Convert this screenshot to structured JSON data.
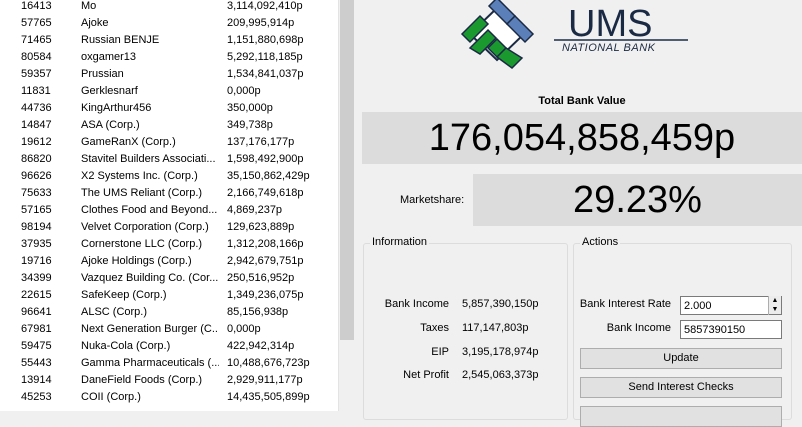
{
  "accounts": [
    {
      "id": "16413",
      "name": "Mo",
      "balance": "3,114,092,410p"
    },
    {
      "id": "57765",
      "name": "Ajoke",
      "balance": "209,995,914p"
    },
    {
      "id": "71465",
      "name": "Russian BENJE",
      "balance": "1,151,880,698p"
    },
    {
      "id": "80584",
      "name": "oxgamer13",
      "balance": "5,292,118,185p"
    },
    {
      "id": "59357",
      "name": "Prussian",
      "balance": "1,534,841,037p"
    },
    {
      "id": "11831",
      "name": "Gerklesnarf",
      "balance": "0,000p"
    },
    {
      "id": "44736",
      "name": "KingArthur456",
      "balance": "350,000p"
    },
    {
      "id": "14847",
      "name": "ASA (Corp.)",
      "balance": "349,738p"
    },
    {
      "id": "19612",
      "name": "GameRanX (Corp.)",
      "balance": "137,176,177p"
    },
    {
      "id": "86820",
      "name": "Stavitel Builders Associati...",
      "balance": "1,598,492,900p"
    },
    {
      "id": "96626",
      "name": "X2 Systems Inc. (Corp.)",
      "balance": "35,150,862,429p"
    },
    {
      "id": "75633",
      "name": "The UMS Reliant (Corp.)",
      "balance": "2,166,749,618p"
    },
    {
      "id": "57165",
      "name": "Clothes Food and Beyond...",
      "balance": "4,869,237p"
    },
    {
      "id": "98194",
      "name": "Velvet Corporation (Corp.)",
      "balance": "129,623,889p"
    },
    {
      "id": "37935",
      "name": "Cornerstone LLC (Corp.)",
      "balance": "1,312,208,166p"
    },
    {
      "id": "19716",
      "name": "Ajoke Holdings (Corp.)",
      "balance": "2,942,679,751p"
    },
    {
      "id": "34399",
      "name": "Vazquez Building Co. (Cor...",
      "balance": "250,516,952p"
    },
    {
      "id": "22615",
      "name": "SafeKeep (Corp.)",
      "balance": "1,349,236,075p"
    },
    {
      "id": "96641",
      "name": "ALSC (Corp.)",
      "balance": "85,156,938p"
    },
    {
      "id": "67981",
      "name": "Next Generation Burger (C...",
      "balance": "0,000p"
    },
    {
      "id": "59475",
      "name": "Nuka-Cola (Corp.)",
      "balance": "422,942,314p"
    },
    {
      "id": "55443",
      "name": "Gamma Pharmaceuticals (...",
      "balance": "10,488,676,723p"
    },
    {
      "id": "13914",
      "name": "DaneField Foods (Corp.)",
      "balance": "2,929,911,177p"
    },
    {
      "id": "45253",
      "name": "COII (Corp.)",
      "balance": "14,435,505,899p"
    }
  ],
  "logo": {
    "name": "UMS",
    "subtitle": "NATIONAL BANK",
    "colors": {
      "blue": "#5b7fb8",
      "green": "#1a9a2e",
      "dark": "#1b2a44"
    }
  },
  "total_bank_value": {
    "label": "Total Bank Value",
    "value": "176,054,858,459p"
  },
  "marketshare": {
    "label": "Marketshare:",
    "value": "29.23%"
  },
  "information": {
    "title": "Information",
    "rows": [
      {
        "label": "Bank Income",
        "value": "5,857,390,150p"
      },
      {
        "label": "Taxes",
        "value": "117,147,803p"
      },
      {
        "label": "EIP",
        "value": "3,195,178,974p"
      },
      {
        "label": "Net Profit",
        "value": "2,545,063,373p"
      }
    ]
  },
  "actions": {
    "title": "Actions",
    "interest_rate_label": "Bank Interest Rate",
    "interest_rate_value": "2.000",
    "income_label": "Bank Income",
    "income_value": "5857390150",
    "update_button": "Update",
    "send_checks_button": "Send Interest Checks"
  }
}
